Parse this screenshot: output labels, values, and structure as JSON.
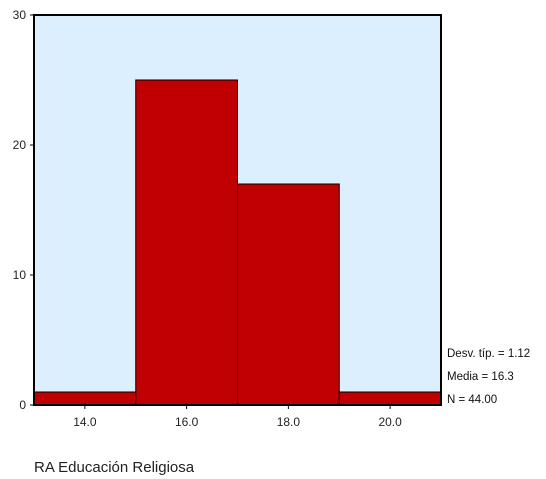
{
  "chart_data": {
    "type": "bar",
    "title": "",
    "xlabel": "RA Educación Religiosa",
    "ylabel": "",
    "categories": [
      "14.0",
      "16.0",
      "18.0",
      "20.0"
    ],
    "bins": [
      {
        "from": 13.0,
        "to": 15.0,
        "value": 1
      },
      {
        "from": 15.0,
        "to": 17.0,
        "value": 25
      },
      {
        "from": 17.0,
        "to": 19.0,
        "value": 17
      },
      {
        "from": 19.0,
        "to": 21.0,
        "value": 1
      }
    ],
    "xlim": [
      13.0,
      21.0
    ],
    "ylim": [
      0,
      30
    ],
    "yticks": [
      "0",
      "10",
      "20",
      "30"
    ],
    "grid": false,
    "colors": {
      "bar": "#c00000",
      "plot_background": "#dcefff",
      "frame": "#000000"
    },
    "stats": {
      "std_dev": "Desv. típ. = 1.12",
      "mean": "Media = 16.3",
      "n": "N = 44.00"
    }
  }
}
